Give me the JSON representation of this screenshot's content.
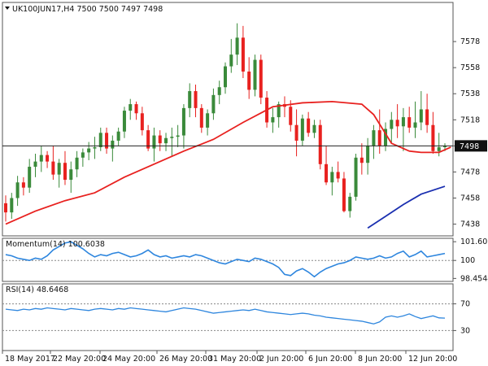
{
  "chart_data": [
    {
      "type": "candlestick",
      "header": "UK100JUN17,H4  7500 7500 7497 7498",
      "symbol": "UK100JUN17,H4",
      "ohlc_header": "7500 7500 7497 7498",
      "current_price": "7498",
      "ylim": [
        7429,
        7608
      ],
      "y_ticks": [
        "7578",
        "7558",
        "7538",
        "7518",
        "7498",
        "7478",
        "7458",
        "7438"
      ],
      "x_ticks": [
        "18 May 2017",
        "22 May 20:00",
        "24 May 20:00",
        "26 May 20:00",
        "31 May 20:00",
        "2 Jun 20:00",
        "6 Jun 20:00",
        "8 Jun 20:00",
        "12 Jun 20:00"
      ],
      "bull_color": "#3a8a3a",
      "bear_color": "#e8211f",
      "candles": [
        [
          7454,
          7460,
          7440,
          7447
        ],
        [
          7447,
          7462,
          7442,
          7458
        ],
        [
          7458,
          7475,
          7452,
          7470
        ],
        [
          7470,
          7474,
          7460,
          7466
        ],
        [
          7466,
          7488,
          7462,
          7482
        ],
        [
          7482,
          7492,
          7474,
          7486
        ],
        [
          7486,
          7498,
          7478,
          7491
        ],
        [
          7491,
          7494,
          7481,
          7486
        ],
        [
          7486,
          7498,
          7472,
          7476
        ],
        [
          7476,
          7488,
          7466,
          7485
        ],
        [
          7485,
          7494,
          7468,
          7472
        ],
        [
          7472,
          7486,
          7462,
          7480
        ],
        [
          7480,
          7494,
          7474,
          7489
        ],
        [
          7489,
          7496,
          7482,
          7493
        ],
        [
          7493,
          7501,
          7487,
          7496
        ],
        [
          7496,
          7505,
          7488,
          7497
        ],
        [
          7497,
          7512,
          7494,
          7508
        ],
        [
          7508,
          7512,
          7492,
          7496
        ],
        [
          7496,
          7506,
          7486,
          7502
        ],
        [
          7502,
          7512,
          7498,
          7509
        ],
        [
          7509,
          7528,
          7504,
          7525
        ],
        [
          7525,
          7534,
          7518,
          7530
        ],
        [
          7530,
          7532,
          7518,
          7523
        ],
        [
          7523,
          7528,
          7506,
          7510
        ],
        [
          7510,
          7514,
          7494,
          7496
        ],
        [
          7496,
          7512,
          7486,
          7506
        ],
        [
          7506,
          7510,
          7494,
          7500
        ],
        [
          7500,
          7508,
          7494,
          7504
        ],
        [
          7504,
          7512,
          7490,
          7505
        ],
        [
          7505,
          7514,
          7497,
          7506
        ],
        [
          7506,
          7530,
          7496,
          7527
        ],
        [
          7527,
          7546,
          7520,
          7540
        ],
        [
          7540,
          7545,
          7520,
          7527
        ],
        [
          7527,
          7530,
          7508,
          7512
        ],
        [
          7512,
          7526,
          7506,
          7523
        ],
        [
          7523,
          7542,
          7518,
          7537
        ],
        [
          7537,
          7548,
          7530,
          7543
        ],
        [
          7543,
          7562,
          7538,
          7559
        ],
        [
          7559,
          7580,
          7554,
          7568
        ],
        [
          7568,
          7592,
          7560,
          7581
        ],
        [
          7581,
          7590,
          7550,
          7555
        ],
        [
          7555,
          7566,
          7534,
          7541
        ],
        [
          7541,
          7568,
          7536,
          7564
        ],
        [
          7564,
          7568,
          7530,
          7535
        ],
        [
          7535,
          7540,
          7512,
          7516
        ],
        [
          7516,
          7527,
          7508,
          7520
        ],
        [
          7520,
          7532,
          7512,
          7530
        ],
        [
          7530,
          7536,
          7520,
          7528
        ],
        [
          7528,
          7533,
          7509,
          7514
        ],
        [
          7514,
          7526,
          7490,
          7502
        ],
        [
          7502,
          7522,
          7498,
          7519
        ],
        [
          7519,
          7524,
          7505,
          7508
        ],
        [
          7508,
          7518,
          7504,
          7514
        ],
        [
          7514,
          7518,
          7480,
          7484
        ],
        [
          7484,
          7498,
          7468,
          7470
        ],
        [
          7470,
          7482,
          7460,
          7478
        ],
        [
          7478,
          7486,
          7470,
          7473
        ],
        [
          7473,
          7478,
          7447,
          7448
        ],
        [
          7448,
          7462,
          7443,
          7459
        ],
        [
          7459,
          7492,
          7456,
          7489
        ],
        [
          7489,
          7500,
          7476,
          7485
        ],
        [
          7485,
          7504,
          7476,
          7498
        ],
        [
          7498,
          7514,
          7488,
          7510
        ],
        [
          7510,
          7526,
          7492,
          7498
        ],
        [
          7498,
          7516,
          7494,
          7511
        ],
        [
          7511,
          7524,
          7500,
          7518
        ],
        [
          7518,
          7530,
          7504,
          7513
        ],
        [
          7513,
          7527,
          7494,
          7520
        ],
        [
          7520,
          7528,
          7508,
          7512
        ],
        [
          7512,
          7532,
          7504,
          7516
        ],
        [
          7516,
          7540,
          7510,
          7526
        ],
        [
          7526,
          7538,
          7508,
          7514
        ],
        [
          7514,
          7524,
          7492,
          7494
        ],
        [
          7494,
          7508,
          7490,
          7497
        ],
        [
          7497,
          7500,
          7494,
          7498
        ]
      ],
      "sma_fast": [
        [
          0,
          7438
        ],
        [
          5,
          7448
        ],
        [
          10,
          7456
        ],
        [
          15,
          7462
        ],
        [
          20,
          7474
        ],
        [
          25,
          7484
        ],
        [
          30,
          7494
        ],
        [
          35,
          7503
        ],
        [
          40,
          7516
        ],
        [
          45,
          7528
        ],
        [
          50,
          7531
        ],
        [
          55,
          7532
        ],
        [
          60,
          7530
        ],
        [
          62,
          7522
        ],
        [
          65,
          7500
        ],
        [
          68,
          7494
        ],
        [
          70,
          7493
        ],
        [
          73,
          7493
        ],
        [
          75,
          7497
        ]
      ],
      "sma_slow": [
        [
          61,
          7435
        ],
        [
          64,
          7444
        ],
        [
          67,
          7453
        ],
        [
          70,
          7461
        ],
        [
          74,
          7467
        ]
      ]
    },
    {
      "type": "line",
      "title": "Momentum(14) 100.6038",
      "y_ticks": [
        "101.6073",
        "100",
        "98.4544"
      ],
      "ylim": [
        98.2,
        101.9
      ],
      "level_line": 100,
      "color": "#2e86de",
      "values": [
        100.5,
        100.4,
        100.2,
        100.1,
        100.0,
        100.2,
        100.1,
        100.4,
        100.9,
        101.2,
        101.5,
        101.6,
        101.3,
        101.0,
        100.6,
        100.3,
        100.5,
        100.4,
        100.6,
        100.7,
        100.5,
        100.3,
        100.4,
        100.6,
        100.9,
        100.5,
        100.3,
        100.4,
        100.2,
        100.3,
        100.4,
        100.3,
        100.5,
        100.4,
        100.2,
        100.0,
        99.8,
        99.7,
        99.9,
        100.1,
        100.0,
        99.9,
        100.2,
        100.1,
        99.9,
        99.7,
        99.4,
        98.8,
        98.7,
        99.1,
        99.3,
        99.0,
        98.6,
        99.0,
        99.3,
        99.5,
        99.7,
        99.8,
        100.0,
        100.3,
        100.2,
        100.1,
        100.2,
        100.4,
        100.2,
        100.3,
        100.6,
        100.8,
        100.3,
        100.5,
        100.8,
        100.3,
        100.4,
        100.5,
        100.6
      ]
    },
    {
      "type": "line",
      "title": "RSI(14) 48.6468",
      "y_ticks": [
        "70",
        "30"
      ],
      "ylim": [
        0,
        100
      ],
      "level_lines": [
        70,
        30
      ],
      "color": "#2e86de",
      "values": [
        62,
        61,
        60,
        62,
        61,
        63,
        62,
        64,
        63,
        62,
        61,
        63,
        62,
        61,
        60,
        62,
        63,
        62,
        61,
        63,
        62,
        64,
        63,
        62,
        61,
        60,
        59,
        58,
        60,
        62,
        64,
        63,
        62,
        60,
        58,
        56,
        57,
        58,
        59,
        60,
        61,
        60,
        62,
        60,
        58,
        57,
        56,
        55,
        54,
        55,
        56,
        55,
        53,
        52,
        50,
        49,
        48,
        47,
        46,
        45,
        44,
        42,
        40,
        43,
        50,
        52,
        50,
        52,
        55,
        51,
        48,
        50,
        52,
        49,
        48.6
      ]
    }
  ]
}
